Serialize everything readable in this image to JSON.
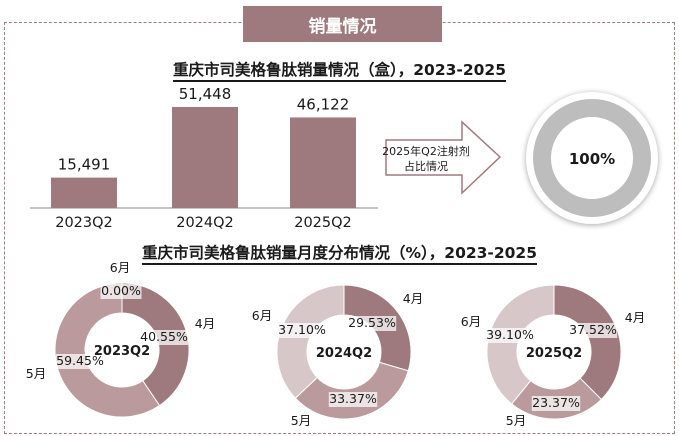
{
  "header": {
    "title": "销量情况"
  },
  "bar_chart": {
    "title": "重庆市司美格鲁肽销量情况（盒），2023-2025"
  },
  "arrow_label": {
    "line1": "2025年Q2注射剂",
    "line2": "占比情况"
  },
  "ring": {
    "label": "100%"
  },
  "donut_title": "重庆市司美格鲁肽销量月度分布情况（%），2023-2025",
  "colors": {
    "bar": "#9e797d",
    "m4": "#9e797d",
    "m5": "#bb9a9e",
    "m6": "#d8c7c9",
    "ring_gray": "#bdbdbd",
    "header_bg": "#9e797d"
  },
  "chart_data": [
    {
      "type": "bar",
      "title": "重庆市司美格鲁肽销量情况（盒），2023-2025",
      "categories": [
        "2023Q2",
        "2024Q2",
        "2025Q2"
      ],
      "values": [
        15491,
        51448,
        46122
      ],
      "value_labels": [
        "15,491",
        "51,448",
        "46,122"
      ],
      "ylim": [
        0,
        51448
      ]
    },
    {
      "type": "pie",
      "title": "2025年Q2注射剂占比情况",
      "slices": [
        {
          "label": "100%",
          "value": 100
        }
      ]
    },
    {
      "type": "pie",
      "center_label": "2023Q2",
      "slices": [
        {
          "label": "4月",
          "value": 40.55,
          "value_label": "40.55%"
        },
        {
          "label": "5月",
          "value": 59.45,
          "value_label": "59.45%"
        },
        {
          "label": "6月",
          "value": 0.0,
          "value_label": "0.00%"
        }
      ]
    },
    {
      "type": "pie",
      "center_label": "2024Q2",
      "slices": [
        {
          "label": "4月",
          "value": 29.53,
          "value_label": "29.53%"
        },
        {
          "label": "5月",
          "value": 33.37,
          "value_label": "33.37%"
        },
        {
          "label": "6月",
          "value": 37.1,
          "value_label": "37.10%"
        }
      ]
    },
    {
      "type": "pie",
      "center_label": "2025Q2",
      "slices": [
        {
          "label": "4月",
          "value": 37.52,
          "value_label": "37.52%"
        },
        {
          "label": "5月",
          "value": 23.37,
          "value_label": "23.37%"
        },
        {
          "label": "6月",
          "value": 39.1,
          "value_label": "39.10%"
        }
      ]
    }
  ]
}
